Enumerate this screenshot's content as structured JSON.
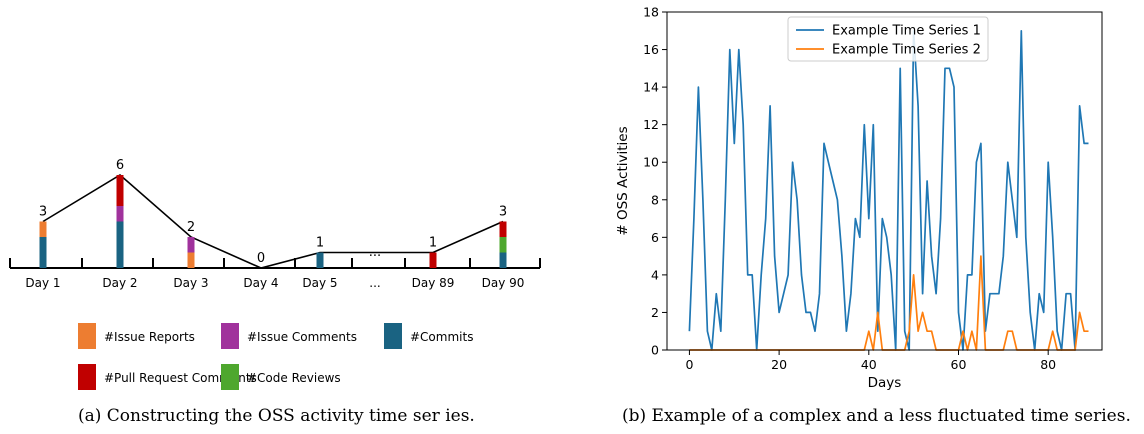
{
  "panels": {
    "a": {
      "caption": "(a) Constructing the OSS activity time ser ies."
    },
    "b": {
      "caption": "(b) Example of a complex and a less fluctuated time series."
    }
  },
  "colors": {
    "issue_reports": "#ed7d31",
    "issue_comments": "#a0329c",
    "commits": "#1a6382",
    "pull_request_comments": "#c00000",
    "code_reviews": "#4ea72e",
    "series1": "#1f77b4",
    "series2": "#ff7f0e"
  },
  "chart_data": [
    {
      "type": "bar",
      "stacked": true,
      "categories": [
        "Day 1",
        "Day 2",
        "Day 3",
        "Day 4",
        "Day 5",
        "...",
        "Day 89",
        "Day 90"
      ],
      "totals": [
        "3",
        "6",
        "2",
        "0",
        "1",
        "...",
        "1",
        "3"
      ],
      "totals_values": [
        3,
        6,
        2,
        0,
        1,
        null,
        1,
        3
      ],
      "series": [
        {
          "name": "#Commits",
          "key": "commits",
          "values": [
            2,
            3,
            0,
            0,
            1,
            null,
            0,
            1
          ]
        },
        {
          "name": "#Issue Reports",
          "key": "issue_reports",
          "values": [
            1,
            0,
            1,
            0,
            0,
            null,
            0,
            0
          ]
        },
        {
          "name": "#Issue Comments",
          "key": "issue_comments",
          "values": [
            0,
            1,
            1,
            0,
            0,
            null,
            0,
            0
          ]
        },
        {
          "name": "#Code Reviews",
          "key": "code_reviews",
          "values": [
            0,
            0,
            0,
            0,
            0,
            null,
            0,
            1
          ]
        },
        {
          "name": "#Pull Request Comments",
          "key": "pull_request_comments",
          "values": [
            0,
            2,
            0,
            0,
            0,
            null,
            1,
            1
          ]
        }
      ],
      "legend": [
        {
          "key": "issue_reports",
          "label": "#Issue Reports"
        },
        {
          "key": "issue_comments",
          "label": "#Issue Comments"
        },
        {
          "key": "commits",
          "label": "#Commits"
        },
        {
          "key": "pull_request_comments",
          "label": "#Pull Request Comments"
        },
        {
          "key": "code_reviews",
          "label": "#Code Reviews"
        }
      ],
      "legend_position": "bottom"
    },
    {
      "type": "line",
      "xlabel": "Days",
      "ylabel": "# OSS Activities",
      "xlim": [
        -5,
        92
      ],
      "ylim": [
        0,
        18
      ],
      "xticks": [
        0,
        20,
        40,
        60,
        80
      ],
      "yticks": [
        0,
        2,
        4,
        6,
        8,
        10,
        12,
        14,
        16,
        18
      ],
      "grid": false,
      "legend_position": "top-center",
      "x": [
        0,
        1,
        2,
        3,
        4,
        5,
        6,
        7,
        8,
        9,
        10,
        11,
        12,
        13,
        14,
        15,
        16,
        17,
        18,
        19,
        20,
        21,
        22,
        23,
        24,
        25,
        26,
        27,
        28,
        29,
        30,
        31,
        32,
        33,
        34,
        35,
        36,
        37,
        38,
        39,
        40,
        41,
        42,
        43,
        44,
        45,
        46,
        47,
        48,
        49,
        50,
        51,
        52,
        53,
        54,
        55,
        56,
        57,
        58,
        59,
        60,
        61,
        62,
        63,
        64,
        65,
        66,
        67,
        68,
        69,
        70,
        71,
        72,
        73,
        74,
        75,
        76,
        77,
        78,
        79,
        80,
        81,
        82,
        83,
        84,
        85,
        86,
        87,
        88,
        89
      ],
      "series": [
        {
          "name": "Example Time Series 1",
          "color_key": "series1",
          "values": [
            1,
            7,
            14,
            8,
            1,
            0,
            3,
            1,
            8,
            16,
            11,
            16,
            12,
            4,
            4,
            0,
            4,
            7,
            13,
            5,
            2,
            3,
            4,
            10,
            8,
            4,
            2,
            2,
            1,
            3,
            11,
            10,
            9,
            8,
            5,
            1,
            3,
            7,
            6,
            12,
            7,
            12,
            1,
            7,
            6,
            4,
            0,
            15,
            1,
            0,
            17,
            13,
            3,
            9,
            5,
            3,
            7,
            15,
            15,
            14,
            2,
            0,
            4,
            4,
            10,
            11,
            1,
            3,
            3,
            3,
            5,
            10,
            8,
            6,
            17,
            6,
            2,
            0,
            3,
            2,
            10,
            6,
            1,
            0,
            3,
            3,
            0,
            13,
            11,
            11
          ]
        },
        {
          "name": "Example Time Series 2",
          "color_key": "series2",
          "values": [
            0,
            0,
            0,
            0,
            0,
            0,
            0,
            0,
            0,
            0,
            0,
            0,
            0,
            0,
            0,
            0,
            0,
            0,
            0,
            0,
            0,
            0,
            0,
            0,
            0,
            0,
            0,
            0,
            0,
            0,
            0,
            0,
            0,
            0,
            0,
            0,
            0,
            0,
            0,
            0,
            1,
            0,
            2,
            0,
            0,
            0,
            0,
            0,
            0,
            1,
            4,
            1,
            2,
            1,
            1,
            0,
            0,
            0,
            0,
            0,
            0,
            1,
            0,
            1,
            0,
            5,
            0,
            0,
            0,
            0,
            0,
            1,
            1,
            0,
            0,
            0,
            0,
            0,
            0,
            0,
            0,
            1,
            0,
            0,
            0,
            0,
            0,
            2,
            1,
            1
          ]
        }
      ]
    }
  ]
}
